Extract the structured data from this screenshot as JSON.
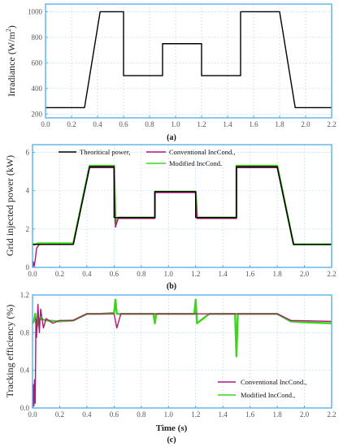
{
  "colors": {
    "frame": "#4aaee8",
    "grid": "#bcd6ea",
    "theoretical": "#000000",
    "conventional": "#b0157a",
    "modified": "#39d61a"
  },
  "chart_data": [
    {
      "type": "line",
      "panel": "(a)",
      "xlabel": "",
      "ylabel": "Irradiance (W/m²)",
      "xlim": [
        0,
        2.2
      ],
      "ylim": [
        170,
        1060
      ],
      "xticks": [
        0.0,
        0.2,
        0.4,
        0.6,
        0.8,
        1.0,
        1.2,
        1.4,
        1.6,
        1.8,
        2.0,
        2.2
      ],
      "xtick_labels": [
        "0.0",
        "0.2",
        "0.4",
        "0.6",
        "0.8",
        "1.0",
        "1.2",
        "1.4",
        "1.6",
        "1.8",
        "2.0",
        "2.2"
      ],
      "yticks": [
        200,
        400,
        600,
        800,
        1000
      ],
      "ytick_labels": [
        "200",
        "400",
        "600",
        "800",
        "1000"
      ],
      "grid": true,
      "series": [
        {
          "color": "#000000",
          "x": [
            0,
            0.3,
            0.42,
            0.6,
            0.6,
            0.9,
            0.9,
            1.2,
            1.2,
            1.5,
            1.5,
            1.8,
            1.92,
            2.2
          ],
          "y": [
            250,
            250,
            1000,
            1000,
            500,
            500,
            750,
            750,
            500,
            500,
            1000,
            1000,
            250,
            250
          ]
        }
      ]
    },
    {
      "type": "line",
      "panel": "(b)",
      "xlabel": "",
      "ylabel": "Grid injected power (kW)",
      "xlim": [
        0,
        2.2
      ],
      "ylim": [
        0,
        6.4
      ],
      "xticks": [
        0.0,
        0.2,
        0.4,
        0.6,
        0.8,
        1.0,
        1.2,
        1.4,
        1.6,
        1.8,
        2.0,
        2.2
      ],
      "xtick_labels": [
        "0.0",
        "0.2",
        "0.4",
        "0.6",
        "0.8",
        "1.0",
        "1.2",
        "1.4",
        "1.6",
        "1.8",
        "2.0",
        "2.2"
      ],
      "yticks": [
        0,
        2,
        4,
        6
      ],
      "ytick_labels": [
        "0",
        "2",
        "4",
        "6"
      ],
      "grid": true,
      "legend_position": "top-left",
      "series": [
        {
          "name": "Theoritical power,",
          "color": "#000000",
          "x": [
            0,
            0.3,
            0.42,
            0.6,
            0.6,
            0.9,
            0.9,
            1.2,
            1.2,
            1.5,
            1.5,
            1.8,
            1.92,
            2.2
          ],
          "y": [
            1.2,
            1.2,
            5.25,
            5.25,
            2.6,
            2.6,
            3.95,
            3.95,
            2.6,
            2.6,
            5.25,
            5.25,
            1.2,
            1.2
          ]
        },
        {
          "name": "Conventional IncCond.,",
          "color": "#b0157a",
          "x": [
            0,
            0.005,
            0.012,
            0.02,
            0.03,
            0.05,
            0.3,
            0.42,
            0.6,
            0.61,
            0.63,
            0.9,
            0.9,
            1.2,
            1.21,
            1.5,
            1.5,
            1.8,
            1.92,
            2.2
          ],
          "y": [
            0.0,
            0.3,
            0.05,
            0.4,
            1.0,
            1.2,
            1.2,
            5.2,
            5.2,
            2.1,
            2.55,
            2.55,
            3.9,
            3.9,
            2.55,
            2.55,
            5.2,
            5.2,
            1.2,
            1.2
          ]
        },
        {
          "name": "Modified IncCond.",
          "color": "#39d61a",
          "x": [
            0,
            0.02,
            0.04,
            0.3,
            0.42,
            0.6,
            0.61,
            0.63,
            0.9,
            0.9,
            1.2,
            1.21,
            1.5,
            1.5,
            1.8,
            1.92,
            2.2
          ],
          "y": [
            1.2,
            1.2,
            1.25,
            1.25,
            5.3,
            5.3,
            2.3,
            2.6,
            2.6,
            3.95,
            3.95,
            2.6,
            2.6,
            5.3,
            5.3,
            1.2,
            1.2
          ]
        }
      ]
    },
    {
      "type": "line",
      "panel": "(c)",
      "xlabel": "Time (s)",
      "ylabel": "Tracking efficiency (%)",
      "xlim": [
        0,
        2.2
      ],
      "ylim": [
        0,
        1.2
      ],
      "xticks": [
        0.0,
        0.2,
        0.4,
        0.6,
        0.8,
        1.0,
        1.2,
        1.4,
        1.6,
        1.8,
        2.0,
        2.2
      ],
      "xtick_labels": [
        "0.0",
        "0.2",
        "0.4",
        "0.6",
        "0.8",
        "1.0",
        "1.2",
        "1.4",
        "1.6",
        "1.8",
        "2.0",
        "2.2"
      ],
      "yticks": [
        0.0,
        0.4,
        0.8,
        1.2
      ],
      "ytick_labels": [
        "0.0",
        "0.4",
        "0.8",
        "1.2"
      ],
      "grid": true,
      "legend_position": "bottom-right",
      "series": [
        {
          "name": "Conventional IncCond.,",
          "color": "#b0157a",
          "x": [
            0,
            0.005,
            0.01,
            0.015,
            0.02,
            0.025,
            0.03,
            0.04,
            0.05,
            0.06,
            0.08,
            0.1,
            0.15,
            0.2,
            0.3,
            0.4,
            0.6,
            0.62,
            0.65,
            0.9,
            1.2,
            1.5,
            1.8,
            1.9,
            2.2
          ],
          "y": [
            0.0,
            0.25,
            0.02,
            0.3,
            0.05,
            0.95,
            0.75,
            1.1,
            0.8,
            1.05,
            0.85,
            0.95,
            0.9,
            0.93,
            0.93,
            1.0,
            1.0,
            0.85,
            1.0,
            1.0,
            1.0,
            1.0,
            1.0,
            0.93,
            0.92
          ]
        },
        {
          "name": "Modified IncCond.,",
          "color": "#39d61a",
          "x": [
            0,
            0.01,
            0.02,
            0.03,
            0.05,
            0.1,
            0.2,
            0.3,
            0.4,
            0.5,
            0.6,
            0.61,
            0.62,
            0.7,
            0.89,
            0.9,
            0.91,
            1.0,
            1.19,
            1.2,
            1.21,
            1.3,
            1.49,
            1.5,
            1.51,
            1.6,
            1.8,
            1.9,
            2.0,
            2.2
          ],
          "y": [
            0.9,
            0.92,
            1.0,
            0.85,
            0.95,
            0.93,
            0.92,
            0.93,
            1.0,
            1.0,
            1.01,
            1.15,
            1.0,
            1.0,
            1.0,
            0.9,
            1.0,
            1.0,
            1.0,
            1.15,
            0.9,
            1.0,
            1.0,
            0.55,
            1.0,
            1.0,
            1.0,
            0.92,
            0.91,
            0.9
          ]
        }
      ]
    }
  ]
}
